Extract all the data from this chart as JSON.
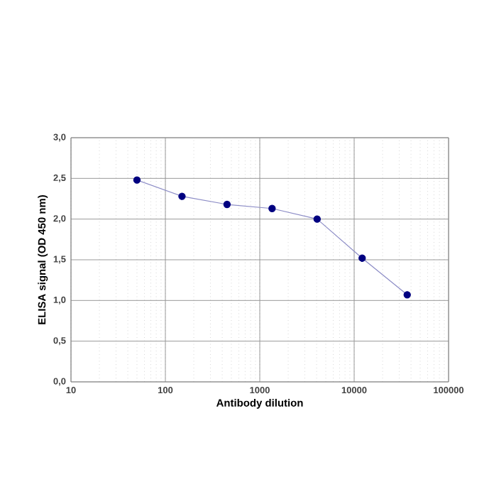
{
  "chart_data": {
    "type": "line",
    "xlabel": "Antibody dilution",
    "ylabel": "ELISA signal (OD 450 nm)",
    "x": [
      50,
      150,
      450,
      1350,
      4050,
      12150,
      36450
    ],
    "series": [
      {
        "color": "#000080",
        "values": [
          2.48,
          2.28,
          2.18,
          2.13,
          2.0,
          1.52,
          1.07
        ]
      }
    ],
    "log": "x",
    "xlim": [
      10,
      100000
    ],
    "xticks": [
      10,
      100,
      1000,
      10000,
      100000
    ],
    "ylim": [
      0,
      3
    ],
    "yticks": [
      {
        "value": 0,
        "label": "0,0"
      },
      {
        "value": 0.5,
        "label": "0,5"
      },
      {
        "value": 1,
        "label": "1,0"
      },
      {
        "value": 1.5,
        "label": "1,5"
      },
      {
        "value": 2,
        "label": "2,0"
      },
      {
        "value": 2.5,
        "label": "2,5"
      },
      {
        "value": 3,
        "label": "3,0"
      }
    ],
    "grid": true,
    "marker": "circle",
    "line_style": "solid"
  }
}
